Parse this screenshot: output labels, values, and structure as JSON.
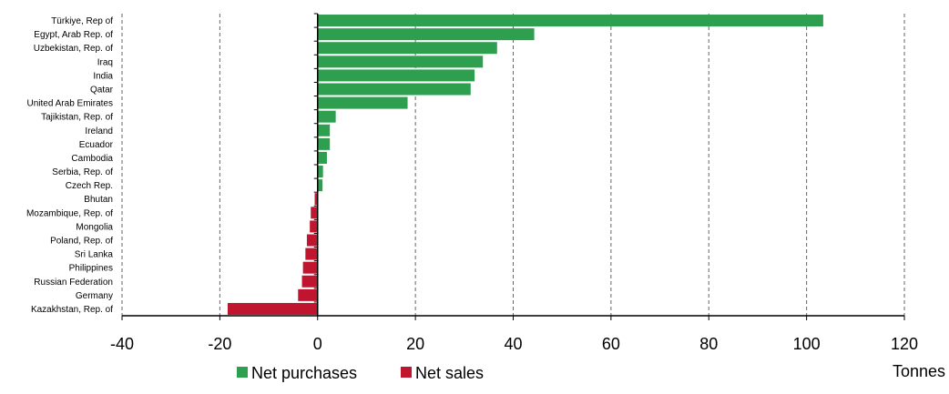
{
  "chart_data": {
    "type": "bar",
    "orientation": "horizontal",
    "categories": [
      "Türkiye, Rep of",
      "Egypt, Arab Rep. of",
      "Uzbekistan, Rep. of",
      "Iraq",
      "India",
      "Qatar",
      "United Arab Emirates",
      "Tajikistan, Rep. of",
      "Ireland",
      "Ecuador",
      "Cambodia",
      "Serbia, Rep. of",
      "Czech Rep.",
      "Bhutan",
      "Mozambique, Rep. of",
      "Mongolia",
      "Poland, Rep. of",
      "Sri Lanka",
      "Philippines",
      "Russian Federation",
      "Germany",
      "Kazakhstan, Rep. of"
    ],
    "values": [
      103.4,
      44.3,
      36.7,
      33.8,
      32.1,
      31.3,
      18.4,
      3.7,
      2.5,
      2.5,
      1.9,
      1.1,
      1.0,
      -0.6,
      -1.4,
      -1.6,
      -2.2,
      -2.5,
      -3.0,
      -3.2,
      -4.0,
      -18.4
    ],
    "series": [
      {
        "name": "Net purchases",
        "color": "#2e9e4f"
      },
      {
        "name": "Net sales",
        "color": "#c0152f"
      }
    ],
    "xlabel": "Tonnes",
    "xlim": [
      -40,
      120
    ],
    "xticks": [
      -40,
      -20,
      0,
      20,
      40,
      60,
      80,
      100,
      120
    ],
    "grid": "vertical dashed",
    "legend": "bottom"
  }
}
